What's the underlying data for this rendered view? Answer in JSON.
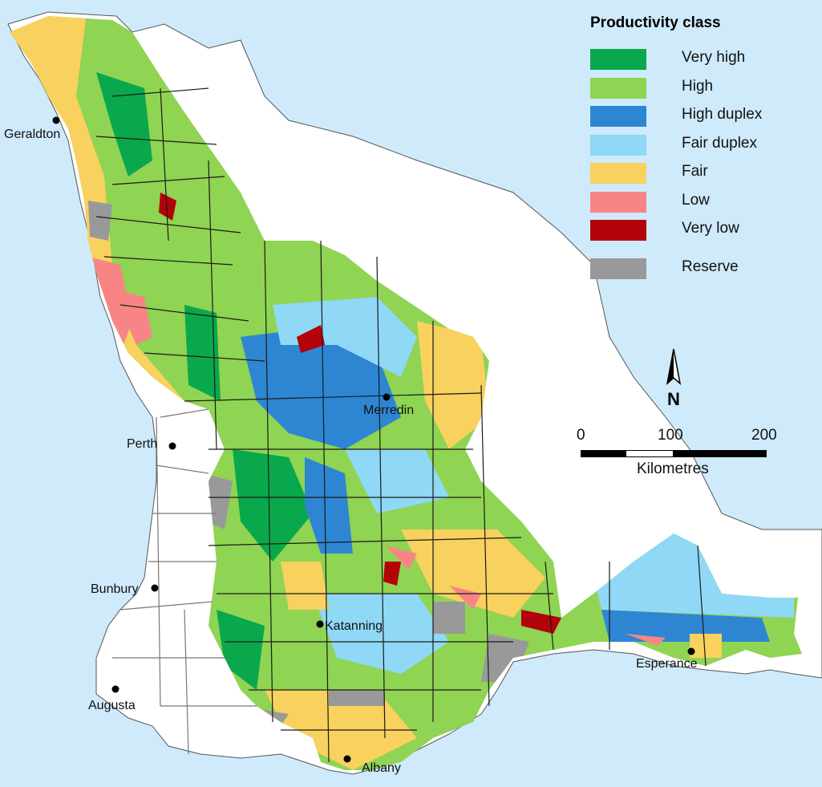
{
  "legend": {
    "title": "Productivity class",
    "items": [
      {
        "label": "Very high",
        "color": "#0aa84c"
      },
      {
        "label": "High",
        "color": "#8fd453"
      },
      {
        "label": "High duplex",
        "color": "#2e86d2"
      },
      {
        "label": "Fair duplex",
        "color": "#8fd8f6"
      },
      {
        "label": "Fair",
        "color": "#f8d15e"
      },
      {
        "label": "Low",
        "color": "#f88585"
      },
      {
        "label": "Very low",
        "color": "#b2020a"
      },
      {
        "label": "Reserve",
        "color": "#999999"
      }
    ]
  },
  "north_arrow": {
    "label": "N"
  },
  "scale_bar": {
    "unit": "Kilometres",
    "ticks": [
      "0",
      "100",
      "200"
    ]
  },
  "towns": [
    {
      "name": "Geraldton"
    },
    {
      "name": "Perth"
    },
    {
      "name": "Bunbury"
    },
    {
      "name": "Augusta"
    },
    {
      "name": "Merredin"
    },
    {
      "name": "Katanning"
    },
    {
      "name": "Albany"
    },
    {
      "name": "Esperance"
    }
  ],
  "colors": {
    "ocean": "#cfeafb",
    "land": "#ffffff",
    "boundary": "#1a1a1a"
  }
}
